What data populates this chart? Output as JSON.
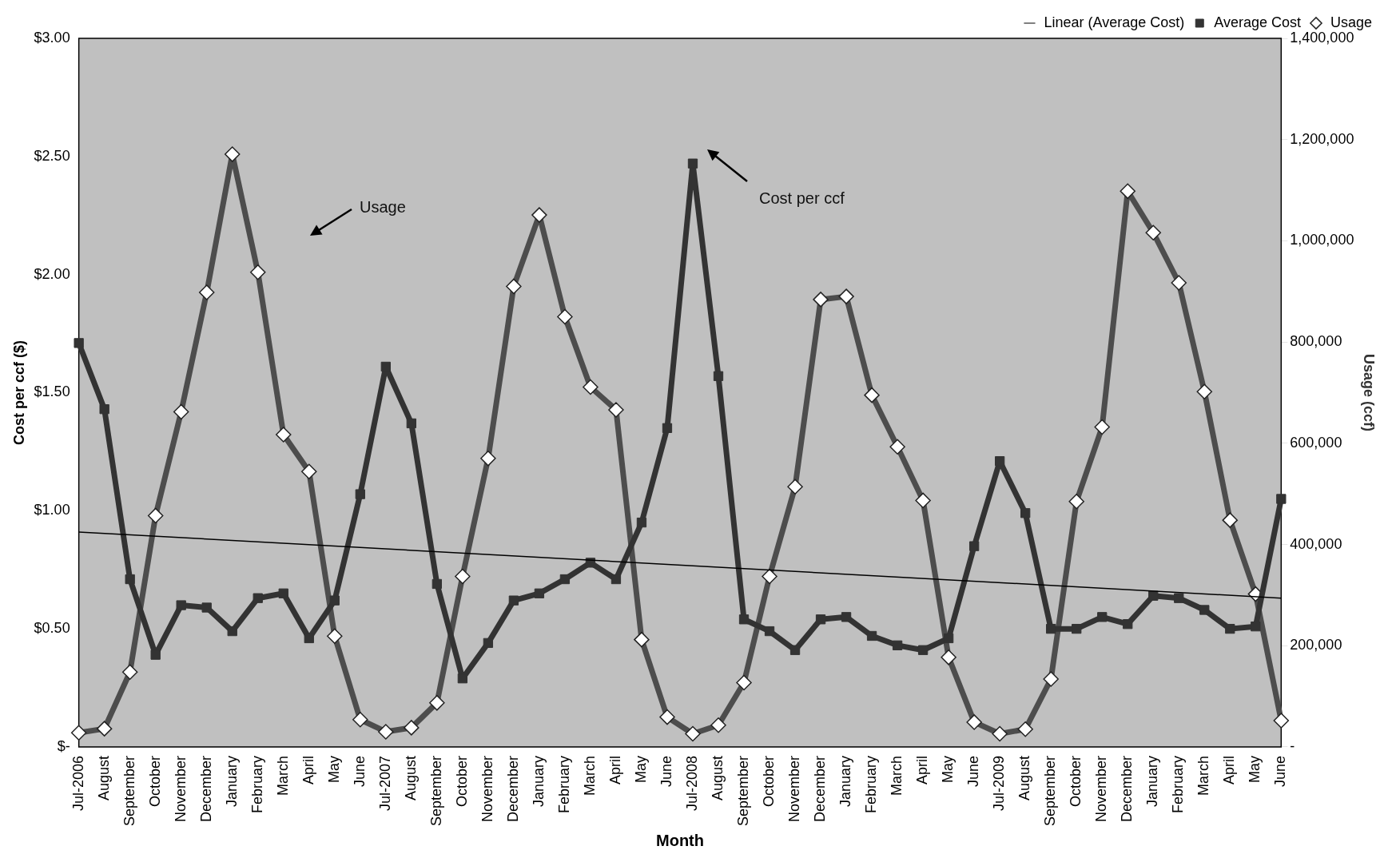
{
  "chart_data": {
    "type": "line",
    "xlabel": "Month",
    "ylabel": "Cost per ccf ($)",
    "y2label": "Usage (ccf)",
    "categories": [
      "Jul-2006",
      "August",
      "September",
      "October",
      "November",
      "December",
      "January",
      "February",
      "March",
      "April",
      "May",
      "June",
      "Jul-2007",
      "August",
      "September",
      "October",
      "November",
      "December",
      "January",
      "February",
      "March",
      "April",
      "May",
      "June",
      "Jul-2008",
      "August",
      "September",
      "October",
      "November",
      "December",
      "January",
      "February",
      "March",
      "April",
      "May",
      "June",
      "Jul-2009",
      "August",
      "September",
      "October",
      "November",
      "December",
      "January",
      "February",
      "March",
      "April",
      "May",
      "June"
    ],
    "series": [
      {
        "name": "Average Cost",
        "color": "#333333",
        "marker": "square",
        "values": [
          1.71,
          1.43,
          0.71,
          0.39,
          0.6,
          0.59,
          0.49,
          0.63,
          0.65,
          0.46,
          0.62,
          1.07,
          1.61,
          1.37,
          0.69,
          0.29,
          0.44,
          0.62,
          0.65,
          0.71,
          0.78,
          0.71,
          0.95,
          1.35,
          2.47,
          1.57,
          0.54,
          0.49,
          0.41,
          0.54,
          0.55,
          0.47,
          0.43,
          0.41,
          0.46,
          0.85,
          1.21,
          0.99,
          0.5,
          0.5,
          0.55,
          0.52,
          0.64,
          0.63,
          0.58,
          0.5,
          0.51,
          1.05
        ]
      },
      {
        "name": "Usage",
        "color": "#4d4d4d",
        "marker": "diamond",
        "axis": "y2",
        "values": [
          28000,
          36000,
          148000,
          457000,
          662000,
          898000,
          1171000,
          938000,
          617000,
          544000,
          219000,
          54000,
          30000,
          38000,
          87000,
          337000,
          570000,
          910000,
          1051000,
          850000,
          711000,
          666000,
          212000,
          59000,
          26000,
          43000,
          127000,
          337000,
          514000,
          884000,
          890000,
          695000,
          593000,
          487000,
          177000,
          49000,
          26000,
          35000,
          134000,
          485000,
          632000,
          1098000,
          1016000,
          917000,
          702000,
          448000,
          302000,
          52000
        ]
      },
      {
        "name": "Linear (Average Cost)",
        "color": "#000000",
        "marker": "none",
        "values": [
          0.91,
          null,
          null,
          null,
          null,
          null,
          null,
          null,
          null,
          null,
          null,
          null,
          null,
          null,
          null,
          null,
          null,
          null,
          null,
          null,
          null,
          null,
          null,
          null,
          null,
          null,
          null,
          null,
          null,
          null,
          null,
          null,
          null,
          null,
          null,
          null,
          null,
          null,
          null,
          null,
          null,
          null,
          null,
          null,
          null,
          null,
          null,
          0.63
        ]
      }
    ],
    "ylim": [
      0,
      3
    ],
    "yticks": [
      {
        "value": 0,
        "label": "$-"
      },
      {
        "value": 0.5,
        "label": "$0.50"
      },
      {
        "value": 1,
        "label": "$1.00"
      },
      {
        "value": 1.5,
        "label": "$1.50"
      },
      {
        "value": 2,
        "label": "$2.00"
      },
      {
        "value": 2.5,
        "label": "$2.50"
      },
      {
        "value": 3,
        "label": "$3.00"
      }
    ],
    "y2lim": [
      0,
      1400000
    ],
    "y2ticks": [
      {
        "value": 0,
        "label": "-"
      },
      {
        "value": 200000,
        "label": "200,000"
      },
      {
        "value": 400000,
        "label": "400,000"
      },
      {
        "value": 600000,
        "label": "600,000"
      },
      {
        "value": 800000,
        "label": "800,000"
      },
      {
        "value": 1000000,
        "label": "1,000,000"
      },
      {
        "value": 1200000,
        "label": "1,200,000"
      },
      {
        "value": 1400000,
        "label": "1,400,000"
      }
    ],
    "grid": false,
    "legend": "top right",
    "line_style": "solid",
    "annotations": [
      "Usage",
      "Cost per ccf"
    ]
  }
}
